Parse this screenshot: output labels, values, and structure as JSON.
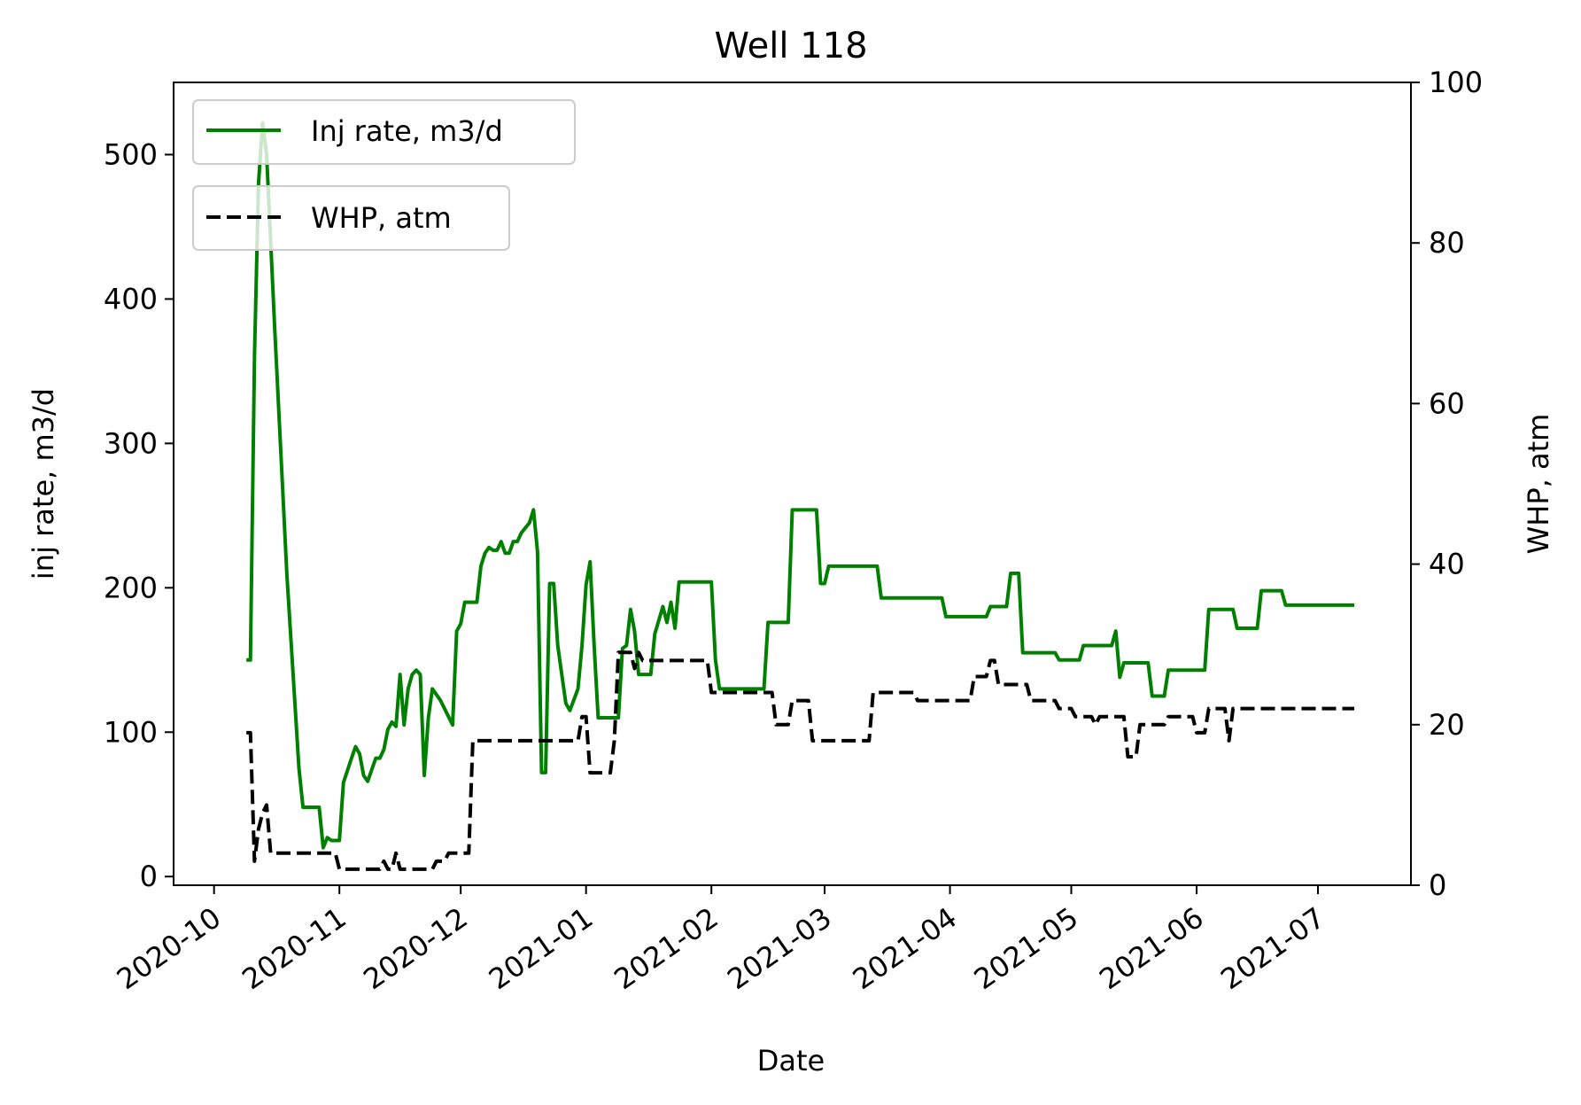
{
  "chart_data": {
    "type": "line",
    "title": "Well 118",
    "xlabel": "Date",
    "ylabel_left": "inj rate, m3/d",
    "ylabel_right": "WHP, atm",
    "xlim": [
      "2020-09-21",
      "2021-07-24"
    ],
    "ylim_left": [
      -6,
      550
    ],
    "ylim_right": [
      0,
      100
    ],
    "x_ticks": [
      "2020-10",
      "2020-11",
      "2020-12",
      "2021-01",
      "2021-02",
      "2021-03",
      "2021-04",
      "2021-05",
      "2021-06",
      "2021-07"
    ],
    "y_ticks_left": [
      0,
      100,
      200,
      300,
      400,
      500
    ],
    "y_ticks_right": [
      0,
      20,
      40,
      60,
      80,
      100
    ],
    "grid": false,
    "legend": [
      {
        "label": "Inj rate, m3/d",
        "placement": "top-left"
      },
      {
        "label": "WHP, atm",
        "placement": "upper-left, below first legend"
      }
    ],
    "colors": {
      "inj_rate": "#008000",
      "whp": "#000000"
    },
    "series": [
      {
        "name": "Inj rate, m3/d",
        "axis": "left",
        "style": "solid",
        "points": [
          [
            "2020-10-09",
            150
          ],
          [
            "2020-10-10",
            150
          ],
          [
            "2020-10-11",
            360
          ],
          [
            "2020-10-12",
            480
          ],
          [
            "2020-10-13",
            522
          ],
          [
            "2020-10-14",
            500
          ],
          [
            "2020-10-16",
            380
          ],
          [
            "2020-10-19",
            210
          ],
          [
            "2020-10-22",
            75
          ],
          [
            "2020-10-23",
            48
          ],
          [
            "2020-10-27",
            48
          ],
          [
            "2020-10-28",
            20
          ],
          [
            "2020-10-29",
            27
          ],
          [
            "2020-10-30",
            25
          ],
          [
            "2020-11-01",
            25
          ],
          [
            "2020-11-02",
            65
          ],
          [
            "2020-11-04",
            82
          ],
          [
            "2020-11-05",
            90
          ],
          [
            "2020-11-06",
            85
          ],
          [
            "2020-11-07",
            70
          ],
          [
            "2020-11-08",
            66
          ],
          [
            "2020-11-10",
            82
          ],
          [
            "2020-11-11",
            82
          ],
          [
            "2020-11-12",
            88
          ],
          [
            "2020-11-13",
            102
          ],
          [
            "2020-11-14",
            107
          ],
          [
            "2020-11-15",
            104
          ],
          [
            "2020-11-16",
            140
          ],
          [
            "2020-11-17",
            105
          ],
          [
            "2020-11-18",
            130
          ],
          [
            "2020-11-19",
            140
          ],
          [
            "2020-11-20",
            143
          ],
          [
            "2020-11-21",
            140
          ],
          [
            "2020-11-22",
            70
          ],
          [
            "2020-11-23",
            110
          ],
          [
            "2020-11-24",
            130
          ],
          [
            "2020-11-26",
            122
          ],
          [
            "2020-11-29",
            105
          ],
          [
            "2020-11-30",
            170
          ],
          [
            "2020-12-01",
            175
          ],
          [
            "2020-12-02",
            190
          ],
          [
            "2020-12-05",
            190
          ],
          [
            "2020-12-06",
            215
          ],
          [
            "2020-12-07",
            224
          ],
          [
            "2020-12-08",
            228
          ],
          [
            "2020-12-09",
            226
          ],
          [
            "2020-12-10",
            226
          ],
          [
            "2020-12-11",
            232
          ],
          [
            "2020-12-12",
            224
          ],
          [
            "2020-12-13",
            224
          ],
          [
            "2020-12-14",
            232
          ],
          [
            "2020-12-15",
            232
          ],
          [
            "2020-12-16",
            238
          ],
          [
            "2020-12-18",
            245
          ],
          [
            "2020-12-19",
            254
          ],
          [
            "2020-12-20",
            225
          ],
          [
            "2020-12-21",
            72
          ],
          [
            "2020-12-22",
            72
          ],
          [
            "2020-12-23",
            203
          ],
          [
            "2020-12-24",
            203
          ],
          [
            "2020-12-25",
            160
          ],
          [
            "2020-12-26",
            140
          ],
          [
            "2020-12-27",
            120
          ],
          [
            "2020-12-28",
            115
          ],
          [
            "2020-12-30",
            130
          ],
          [
            "2020-12-31",
            160
          ],
          [
            "2021-01-01",
            202
          ],
          [
            "2021-01-02",
            218
          ],
          [
            "2021-01-03",
            160
          ],
          [
            "2021-01-04",
            110
          ],
          [
            "2021-01-09",
            110
          ],
          [
            "2021-01-10",
            158
          ],
          [
            "2021-01-11",
            160
          ],
          [
            "2021-01-12",
            185
          ],
          [
            "2021-01-13",
            170
          ],
          [
            "2021-01-14",
            140
          ],
          [
            "2021-01-17",
            140
          ],
          [
            "2021-01-18",
            168
          ],
          [
            "2021-01-20",
            187
          ],
          [
            "2021-01-21",
            176
          ],
          [
            "2021-01-22",
            190
          ],
          [
            "2021-01-23",
            172
          ],
          [
            "2021-01-24",
            204
          ],
          [
            "2021-02-01",
            204
          ],
          [
            "2021-02-02",
            150
          ],
          [
            "2021-02-03",
            130
          ],
          [
            "2021-02-14",
            130
          ],
          [
            "2021-02-15",
            176
          ],
          [
            "2021-02-20",
            176
          ],
          [
            "2021-02-21",
            254
          ],
          [
            "2021-02-27",
            254
          ],
          [
            "2021-02-28",
            203
          ],
          [
            "2021-03-01",
            203
          ],
          [
            "2021-03-02",
            215
          ],
          [
            "2021-03-14",
            215
          ],
          [
            "2021-03-15",
            193
          ],
          [
            "2021-03-30",
            193
          ],
          [
            "2021-03-31",
            180
          ],
          [
            "2021-04-10",
            180
          ],
          [
            "2021-04-11",
            187
          ],
          [
            "2021-04-15",
            187
          ],
          [
            "2021-04-16",
            210
          ],
          [
            "2021-04-18",
            210
          ],
          [
            "2021-04-19",
            155
          ],
          [
            "2021-04-27",
            155
          ],
          [
            "2021-04-28",
            150
          ],
          [
            "2021-05-03",
            150
          ],
          [
            "2021-05-04",
            160
          ],
          [
            "2021-05-11",
            160
          ],
          [
            "2021-05-12",
            170
          ],
          [
            "2021-05-13",
            138
          ],
          [
            "2021-05-14",
            148
          ],
          [
            "2021-05-20",
            148
          ],
          [
            "2021-05-21",
            125
          ],
          [
            "2021-05-24",
            125
          ],
          [
            "2021-05-25",
            143
          ],
          [
            "2021-06-03",
            143
          ],
          [
            "2021-06-04",
            185
          ],
          [
            "2021-06-10",
            185
          ],
          [
            "2021-06-11",
            172
          ],
          [
            "2021-06-16",
            172
          ],
          [
            "2021-06-17",
            198
          ],
          [
            "2021-06-22",
            198
          ],
          [
            "2021-06-23",
            188
          ],
          [
            "2021-07-10",
            188
          ]
        ]
      },
      {
        "name": "WHP, atm",
        "axis": "right",
        "style": "dashed",
        "points": [
          [
            "2020-10-09",
            19
          ],
          [
            "2020-10-10",
            19
          ],
          [
            "2020-10-11",
            3
          ],
          [
            "2020-10-12",
            7
          ],
          [
            "2020-10-13",
            9
          ],
          [
            "2020-10-14",
            10
          ],
          [
            "2020-10-15",
            4
          ],
          [
            "2020-10-31",
            4
          ],
          [
            "2020-11-01",
            2
          ],
          [
            "2020-11-11",
            2
          ],
          [
            "2020-11-12",
            3
          ],
          [
            "2020-11-13",
            2
          ],
          [
            "2020-11-14",
            2
          ],
          [
            "2020-11-15",
            4
          ],
          [
            "2020-11-16",
            2
          ],
          [
            "2020-11-24",
            2
          ],
          [
            "2020-11-25",
            3
          ],
          [
            "2020-11-27",
            3
          ],
          [
            "2020-11-28",
            4
          ],
          [
            "2020-12-03",
            4
          ],
          [
            "2020-12-04",
            18
          ],
          [
            "2020-12-30",
            18
          ],
          [
            "2020-12-31",
            21
          ],
          [
            "2021-01-01",
            21
          ],
          [
            "2021-01-02",
            14
          ],
          [
            "2021-01-07",
            14
          ],
          [
            "2021-01-08",
            18
          ],
          [
            "2021-01-09",
            29
          ],
          [
            "2021-01-12",
            29
          ],
          [
            "2021-01-13",
            27
          ],
          [
            "2021-01-14",
            29
          ],
          [
            "2021-01-15",
            28
          ],
          [
            "2021-01-31",
            28
          ],
          [
            "2021-02-01",
            24
          ],
          [
            "2021-02-16",
            24
          ],
          [
            "2021-02-17",
            20
          ],
          [
            "2021-02-20",
            20
          ],
          [
            "2021-02-21",
            23
          ],
          [
            "2021-02-25",
            23
          ],
          [
            "2021-02-26",
            18
          ],
          [
            "2021-03-12",
            18
          ],
          [
            "2021-03-13",
            24
          ],
          [
            "2021-03-23",
            24
          ],
          [
            "2021-03-24",
            23
          ],
          [
            "2021-04-06",
            23
          ],
          [
            "2021-04-07",
            26
          ],
          [
            "2021-04-10",
            26
          ],
          [
            "2021-04-11",
            28
          ],
          [
            "2021-04-12",
            28
          ],
          [
            "2021-04-13",
            25
          ],
          [
            "2021-04-20",
            25
          ],
          [
            "2021-04-21",
            23
          ],
          [
            "2021-04-27",
            23
          ],
          [
            "2021-04-28",
            22
          ],
          [
            "2021-05-01",
            22
          ],
          [
            "2021-05-02",
            21
          ],
          [
            "2021-05-06",
            21
          ],
          [
            "2021-05-07",
            20
          ],
          [
            "2021-05-08",
            21
          ],
          [
            "2021-05-14",
            21
          ],
          [
            "2021-05-15",
            16
          ],
          [
            "2021-05-17",
            16
          ],
          [
            "2021-05-18",
            20
          ],
          [
            "2021-05-24",
            20
          ],
          [
            "2021-05-25",
            21
          ],
          [
            "2021-05-31",
            21
          ],
          [
            "2021-06-01",
            19
          ],
          [
            "2021-06-03",
            19
          ],
          [
            "2021-06-04",
            22
          ],
          [
            "2021-06-08",
            22
          ],
          [
            "2021-06-09",
            18
          ],
          [
            "2021-06-10",
            22
          ],
          [
            "2021-07-10",
            22
          ]
        ]
      }
    ]
  }
}
